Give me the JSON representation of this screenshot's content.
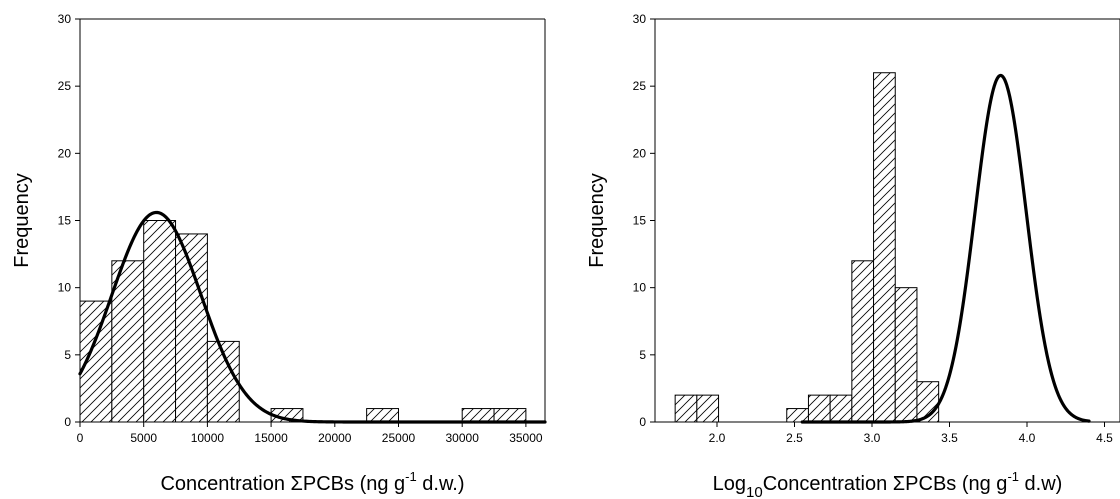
{
  "chart_data": [
    {
      "type": "bar",
      "subtype": "histogram-with-normal-fit",
      "title": "",
      "xlabel": "Concentration ΣPCBs (ng g",
      "xlabel_sup": "-1",
      "xlabel_tail": " d.w.)",
      "ylabel": "Frequency",
      "xlim": [
        0,
        36500
      ],
      "ylim": [
        0,
        30
      ],
      "xticks": [
        0,
        5000,
        10000,
        15000,
        20000,
        25000,
        30000,
        35000
      ],
      "xtick_labels": [
        "0",
        "5000",
        "10000",
        "15000",
        "20000",
        "25000",
        "30000",
        "35000"
      ],
      "yticks": [
        0,
        5,
        10,
        15,
        20,
        25,
        30
      ],
      "ytick_labels": [
        "0",
        "5",
        "10",
        "15",
        "20",
        "25",
        "30"
      ],
      "bin_width": 2500,
      "bins": [
        {
          "start": 0,
          "end": 2500,
          "count": 9
        },
        {
          "start": 2500,
          "end": 5000,
          "count": 12
        },
        {
          "start": 5000,
          "end": 7500,
          "count": 15
        },
        {
          "start": 7500,
          "end": 10000,
          "count": 14
        },
        {
          "start": 10000,
          "end": 12500,
          "count": 6
        },
        {
          "start": 15000,
          "end": 17500,
          "count": 1
        },
        {
          "start": 22500,
          "end": 25000,
          "count": 1
        },
        {
          "start": 30000,
          "end": 32500,
          "count": 1
        },
        {
          "start": 32500,
          "end": 35000,
          "count": 1
        }
      ],
      "fit": {
        "kind": "normal",
        "peak": 15.6,
        "mean": 6000,
        "sd": 3500,
        "x_start": 0,
        "x_end": 36500
      },
      "hatch": "diagonal",
      "bar_color": "#ffffff",
      "line_color": "#000000"
    },
    {
      "type": "bar",
      "subtype": "histogram-with-normal-fit",
      "title": "",
      "xlabel": "Log",
      "xlabel_sub": "10",
      "xlabel_mid": "Concentration ΣPCBs (ng g",
      "xlabel_sup": "-1",
      "xlabel_tail": " d.w)",
      "ylabel": "Frequency",
      "xlim": [
        1.6,
        4.6
      ],
      "ylim": [
        0,
        30
      ],
      "xticks": [
        2.0,
        2.5,
        3.0,
        3.5,
        4.0,
        4.5
      ],
      "xtick_labels": [
        "2.0",
        "2.5",
        "3.0",
        "3.5",
        "4.0",
        "4.5"
      ],
      "yticks": [
        0,
        5,
        10,
        15,
        20,
        25,
        30
      ],
      "ytick_labels": [
        "0",
        "5",
        "10",
        "15",
        "20",
        "25",
        "30"
      ],
      "bin_width": 0.14,
      "bins": [
        {
          "start": 1.73,
          "end": 1.87,
          "count": 2
        },
        {
          "start": 1.87,
          "end": 2.01,
          "count": 2
        },
        {
          "start": 2.45,
          "end": 2.59,
          "count": 1
        },
        {
          "start": 2.59,
          "end": 2.73,
          "count": 2
        },
        {
          "start": 2.73,
          "end": 2.87,
          "count": 2
        },
        {
          "start": 2.87,
          "end": 3.01,
          "count": 12
        },
        {
          "start": 3.01,
          "end": 3.15,
          "count": 26
        },
        {
          "start": 3.15,
          "end": 3.29,
          "count": 10
        },
        {
          "start": 3.29,
          "end": 3.43,
          "count": 3
        }
      ],
      "fit": {
        "kind": "normal",
        "peak": 25.8,
        "mean": 3.83,
        "sd": 0.165,
        "x_start": 2.55,
        "x_end": 4.4
      },
      "hatch": "diagonal",
      "bar_color": "#ffffff",
      "line_color": "#000000"
    }
  ]
}
